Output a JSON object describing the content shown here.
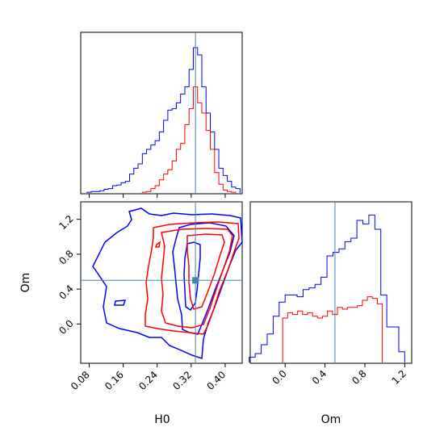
{
  "chart_data": {
    "type": "corner",
    "parameters": [
      "H0",
      "Om"
    ],
    "xlabel_h0": "H0",
    "ylabel_om": "Om",
    "xlabel_om": "Om",
    "h0_ticks": [
      "0.08",
      "0.16",
      "0.24",
      "0.32",
      "0.40"
    ],
    "om_ticks": [
      "0.0",
      "0.4",
      "0.8",
      "1.2"
    ],
    "truth": {
      "H0": 0.33,
      "Om": 0.5
    },
    "h0_range": [
      0.06,
      0.44
    ],
    "om_range": [
      -0.45,
      1.4
    ],
    "om_hist_range": [
      -0.35,
      1.27
    ],
    "series": [
      {
        "color": "#0000ff",
        "h0_hist": {
          "x": [
            0.08,
            0.09,
            0.1,
            0.11,
            0.12,
            0.13,
            0.14,
            0.15,
            0.16,
            0.17,
            0.18,
            0.19,
            0.2,
            0.21,
            0.22,
            0.23,
            0.24,
            0.25,
            0.26,
            0.27,
            0.28,
            0.29,
            0.3,
            0.31,
            0.32,
            0.33,
            0.34,
            0.35,
            0.36,
            0.37,
            0.38,
            0.39,
            0.4,
            0.41,
            0.42,
            0.43
          ],
          "y": [
            0.005,
            0.01,
            0.01,
            0.015,
            0.025,
            0.03,
            0.05,
            0.055,
            0.07,
            0.08,
            0.13,
            0.17,
            0.2,
            0.27,
            0.3,
            0.33,
            0.36,
            0.42,
            0.5,
            0.57,
            0.58,
            0.62,
            0.68,
            0.73,
            0.85,
            1.0,
            0.95,
            0.73,
            0.55,
            0.42,
            0.3,
            0.17,
            0.12,
            0.08,
            0.04,
            0.03
          ]
        },
        "om_hist": {
          "x": [
            -0.33,
            -0.27,
            -0.21,
            -0.15,
            -0.09,
            -0.03,
            0.03,
            0.09,
            0.15,
            0.21,
            0.27,
            0.33,
            0.39,
            0.45,
            0.51,
            0.57,
            0.63,
            0.69,
            0.75,
            0.81,
            0.87,
            0.93,
            0.99,
            1.05,
            1.11,
            1.17
          ],
          "y": [
            0.03,
            0.05,
            0.1,
            0.16,
            0.26,
            0.34,
            0.38,
            0.38,
            0.37,
            0.41,
            0.42,
            0.44,
            0.48,
            0.6,
            0.62,
            0.64,
            0.68,
            0.7,
            0.8,
            0.78,
            0.83,
            0.75,
            0.38,
            0.2,
            0.2,
            0.06
          ]
        }
      },
      {
        "color": "#ff0000",
        "h0_hist": {
          "x": [
            0.21,
            0.22,
            0.23,
            0.24,
            0.25,
            0.26,
            0.27,
            0.28,
            0.29,
            0.3,
            0.31,
            0.32,
            0.33,
            0.34,
            0.35,
            0.36,
            0.37,
            0.38,
            0.39,
            0.4,
            0.41,
            0.42
          ],
          "y": [
            0.005,
            0.01,
            0.03,
            0.05,
            0.09,
            0.13,
            0.16,
            0.22,
            0.3,
            0.34,
            0.47,
            0.58,
            0.73,
            0.62,
            0.55,
            0.43,
            0.3,
            0.14,
            0.06,
            0.02,
            0.01,
            0.005
          ]
        },
        "om_hist": {
          "x": [
            0.0,
            0.05,
            0.1,
            0.15,
            0.2,
            0.25,
            0.3,
            0.35,
            0.4,
            0.45,
            0.5,
            0.55,
            0.6,
            0.65,
            0.7,
            0.75,
            0.8,
            0.85,
            0.9,
            0.95
          ],
          "y": [
            0.25,
            0.28,
            0.27,
            0.29,
            0.27,
            0.28,
            0.26,
            0.25,
            0.26,
            0.29,
            0.27,
            0.31,
            0.3,
            0.31,
            0.31,
            0.32,
            0.35,
            0.37,
            0.36,
            0.33
          ]
        }
      }
    ]
  }
}
